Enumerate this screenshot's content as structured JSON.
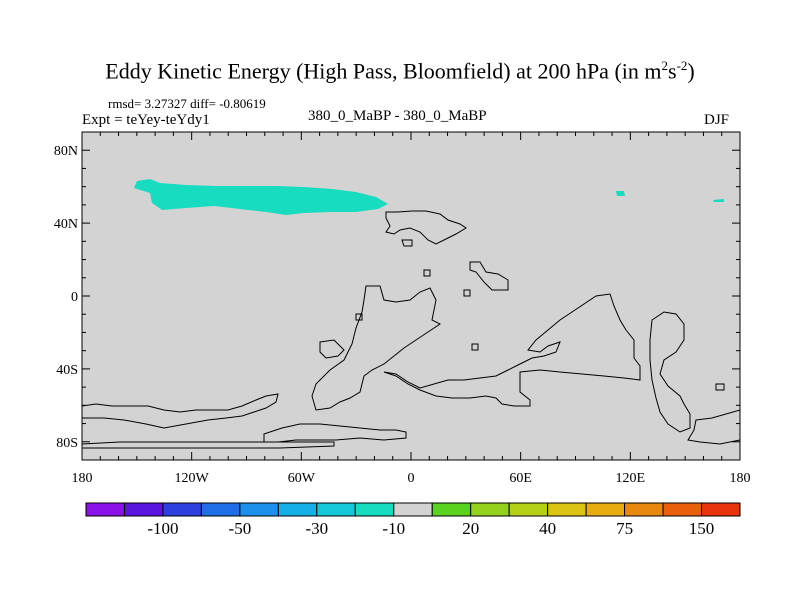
{
  "title": {
    "text": "Eddy Kinetic Energy (High Pass, Bloomfield) at 200 hPa (in m",
    "sup1": "2",
    "mid": "s",
    "sup2": "-2",
    "close": ")"
  },
  "stats": "rmsd= 3.27327 diff= -0.80619",
  "expt": "Expt = teYey-teYdy1",
  "center_label": "380_0_MaBP - 380_0_MaBP",
  "season": "DJF",
  "map": {
    "lon_range": [
      -180,
      180
    ],
    "lat_range": [
      -90,
      90
    ],
    "background_color": "#d3d3d3",
    "x_ticks": [
      {
        "value": -180,
        "label": "180"
      },
      {
        "value": -120,
        "label": "120W"
      },
      {
        "value": -60,
        "label": "60W"
      },
      {
        "value": 0,
        "label": "0"
      },
      {
        "value": 60,
        "label": "60E"
      },
      {
        "value": 120,
        "label": "120E"
      },
      {
        "value": 180,
        "label": "180"
      }
    ],
    "y_ticks": [
      {
        "value": 80,
        "label": "80N"
      },
      {
        "value": 40,
        "label": "40N"
      },
      {
        "value": 0,
        "label": "0"
      },
      {
        "value": -40,
        "label": "40S"
      },
      {
        "value": -80,
        "label": "80S"
      }
    ]
  },
  "colorbar": {
    "colors": [
      "#8a12e8",
      "#5a16e0",
      "#2e3fe0",
      "#1e6ee8",
      "#1c90ea",
      "#16b0e6",
      "#14c8d8",
      "#18dcc0",
      "#d3d3d3",
      "#5ad21e",
      "#92d21c",
      "#b6d018",
      "#dcc414",
      "#e8ac10",
      "#e8880e",
      "#e8600c",
      "#e8340c"
    ],
    "labels": [
      {
        "after": 1,
        "text": "-100"
      },
      {
        "after": 3,
        "text": "-50"
      },
      {
        "after": 5,
        "text": "-30"
      },
      {
        "after": 7,
        "text": "-10"
      },
      {
        "after": 9,
        "text": "20"
      },
      {
        "after": 11,
        "text": "40"
      },
      {
        "after": 13,
        "text": "75"
      },
      {
        "after": 15,
        "text": "150"
      }
    ]
  },
  "anomaly_color": "#18dcc0"
}
